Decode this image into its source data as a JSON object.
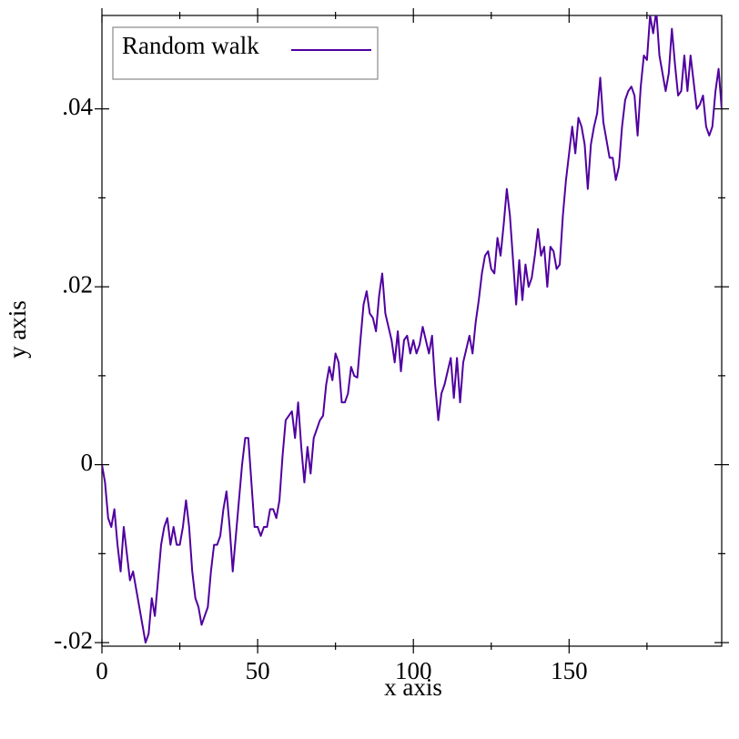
{
  "chart_data": {
    "type": "line",
    "xlabel": "x axis",
    "ylabel": "y axis",
    "x": [
      0,
      1,
      2,
      3,
      4,
      5,
      6,
      7,
      8,
      9,
      10,
      11,
      12,
      13,
      14,
      15,
      16,
      17,
      18,
      19,
      20,
      21,
      22,
      23,
      24,
      25,
      26,
      27,
      28,
      29,
      30,
      31,
      32,
      33,
      34,
      35,
      36,
      37,
      38,
      39,
      40,
      41,
      42,
      43,
      44,
      45,
      46,
      47,
      48,
      49,
      50,
      51,
      52,
      53,
      54,
      55,
      56,
      57,
      58,
      59,
      60,
      61,
      62,
      63,
      64,
      65,
      66,
      67,
      68,
      69,
      70,
      71,
      72,
      73,
      74,
      75,
      76,
      77,
      78,
      79,
      80,
      81,
      82,
      83,
      84,
      85,
      86,
      87,
      88,
      89,
      90,
      91,
      92,
      93,
      94,
      95,
      96,
      97,
      98,
      99,
      100,
      101,
      102,
      103,
      104,
      105,
      106,
      107,
      108,
      109,
      110,
      111,
      112,
      113,
      114,
      115,
      116,
      117,
      118,
      119,
      120,
      121,
      122,
      123,
      124,
      125,
      126,
      127,
      128,
      129,
      130,
      131,
      132,
      133,
      134,
      135,
      136,
      137,
      138,
      139,
      140,
      141,
      142,
      143,
      144,
      145,
      146,
      147,
      148,
      149,
      150,
      151,
      152,
      153,
      154,
      155,
      156,
      157,
      158,
      159,
      160,
      161,
      162,
      163,
      164,
      165,
      166,
      167,
      168,
      169,
      170,
      171,
      172,
      173,
      174,
      175,
      176,
      177,
      178,
      179,
      180,
      181,
      182,
      183,
      184,
      185,
      186,
      187,
      188,
      189,
      190,
      191,
      192,
      193,
      194,
      195,
      196,
      197,
      198,
      199
    ],
    "series": [
      {
        "name": "Random walk",
        "color": "#5000a0",
        "values": [
          0,
          -0.002,
          -0.006,
          -0.007,
          -0.005,
          -0.009,
          -0.012,
          -0.007,
          -0.01,
          -0.013,
          -0.012,
          -0.014,
          -0.016,
          -0.018,
          -0.02,
          -0.019,
          -0.015,
          -0.017,
          -0.013,
          -0.009,
          -0.007,
          -0.006,
          -0.009,
          -0.007,
          -0.009,
          -0.009,
          -0.007,
          -0.004,
          -0.007,
          -0.012,
          -0.015,
          -0.016,
          -0.018,
          -0.017,
          -0.016,
          -0.012,
          -0.009,
          -0.009,
          -0.008,
          -0.005,
          -0.003,
          -0.007,
          -0.012,
          -0.008,
          -0.004,
          0,
          0.003,
          0.003,
          -0.002,
          -0.007,
          -0.007,
          -0.008,
          -0.007,
          -0.007,
          -0.005,
          -0.005,
          -0.006,
          -0.004,
          0.001,
          0.005,
          0.0055,
          0.006,
          0.003,
          0.007,
          0.002,
          -0.002,
          0.002,
          -0.001,
          0.003,
          0.004,
          0.005,
          0.0055,
          0.009,
          0.011,
          0.0095,
          0.0125,
          0.0115,
          0.007,
          0.007,
          0.008,
          0.011,
          0.01,
          0.0098,
          0.014,
          0.018,
          0.0195,
          0.017,
          0.0165,
          0.015,
          0.019,
          0.0215,
          0.017,
          0.0155,
          0.014,
          0.0115,
          0.015,
          0.0105,
          0.014,
          0.0145,
          0.0125,
          0.014,
          0.0125,
          0.0135,
          0.0155,
          0.014,
          0.0125,
          0.0145,
          0.009,
          0.005,
          0.008,
          0.009,
          0.0105,
          0.012,
          0.0075,
          0.012,
          0.007,
          0.0115,
          0.013,
          0.0145,
          0.0125,
          0.016,
          0.0185,
          0.0215,
          0.0235,
          0.024,
          0.022,
          0.0215,
          0.0255,
          0.0235,
          0.027,
          0.031,
          0.028,
          0.023,
          0.018,
          0.023,
          0.0185,
          0.0225,
          0.02,
          0.021,
          0.0235,
          0.0265,
          0.0235,
          0.0245,
          0.02,
          0.0245,
          0.024,
          0.022,
          0.0225,
          0.028,
          0.032,
          0.035,
          0.038,
          0.035,
          0.039,
          0.038,
          0.036,
          0.031,
          0.036,
          0.038,
          0.0395,
          0.0435,
          0.0385,
          0.0365,
          0.0345,
          0.0345,
          0.032,
          0.0335,
          0.038,
          0.041,
          0.042,
          0.0425,
          0.0415,
          0.037,
          0.0425,
          0.046,
          0.0455,
          0.0505,
          0.0485,
          0.051,
          0.046,
          0.044,
          0.042,
          0.044,
          0.049,
          0.045,
          0.0415,
          0.042,
          0.046,
          0.042,
          0.046,
          0.043,
          0.04,
          0.0405,
          0.0415,
          0.038,
          0.037,
          0.038,
          0.042,
          0.0445,
          0.04
        ]
      }
    ],
    "xlim": [
      0,
      199
    ],
    "ylim": [
      -0.0204,
      0.0505
    ],
    "xticks": [
      0,
      50,
      100,
      150
    ],
    "yticks": [
      {
        "value": -0.02,
        "label": "-.02"
      },
      0,
      {
        "value": 0.02,
        "label": ".02"
      },
      {
        "value": 0.04,
        "label": ".04"
      }
    ],
    "xminorticks": [
      25,
      75,
      125,
      175
    ],
    "yminorticks": [
      -0.01,
      0.01,
      0.03
    ],
    "legend": "top-left"
  }
}
